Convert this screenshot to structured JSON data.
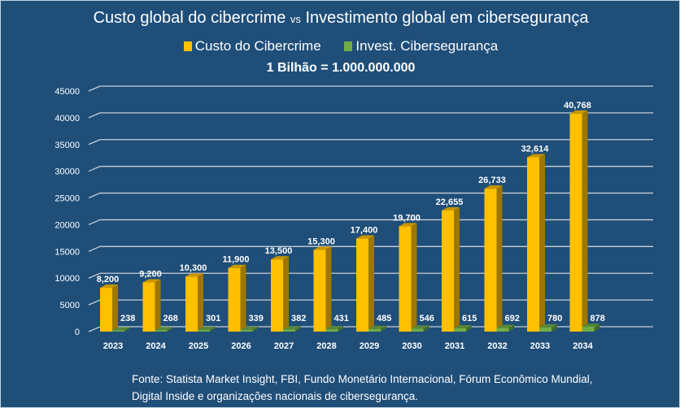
{
  "chart_data": {
    "type": "bar",
    "title": "Custo global do cibercrime",
    "title_vs": "vs",
    "title_rest": "Investimento global em cibersegurança",
    "subtitle": "1 Bilhão = 1.000.000.000",
    "categories": [
      "2023",
      "2024",
      "2025",
      "2026",
      "2027",
      "2028",
      "2029",
      "2030",
      "2031",
      "2032",
      "2033",
      "2034"
    ],
    "series": [
      {
        "name": "Custo do Cibercrime",
        "color": "#ffc000",
        "values": [
          8200,
          9200,
          10300,
          11900,
          13500,
          15300,
          17400,
          19700,
          22655,
          26733,
          32614,
          40768
        ],
        "labels": [
          "8,200",
          "9,200",
          "10,300",
          "11,900",
          "13,500",
          "15,300",
          "17,400",
          "19,700",
          "22,655",
          "26,733",
          "32,614",
          "40,768"
        ]
      },
      {
        "name": "Invest. Cibersegurança",
        "color": "#70ad47",
        "values": [
          238,
          268,
          301,
          339,
          382,
          431,
          485,
          546,
          615,
          692,
          780,
          878
        ],
        "labels": [
          "238",
          "268",
          "301",
          "339",
          "382",
          "431",
          "485",
          "546",
          "615",
          "692",
          "780",
          "878"
        ]
      }
    ],
    "yticks": [
      "0",
      "5000",
      "10000",
      "15000",
      "20000",
      "25000",
      "30000",
      "35000",
      "40000",
      "45000"
    ],
    "ylim": [
      0,
      45000
    ],
    "grid": true,
    "legend": "top"
  },
  "source": {
    "line1": "Fonte: Statista Market Insight, FBI, Fundo Monetário Internacional, Fórum Econômico Mundial,",
    "line2": "Digital Inside e organizações nacionais de cibersegurança."
  }
}
